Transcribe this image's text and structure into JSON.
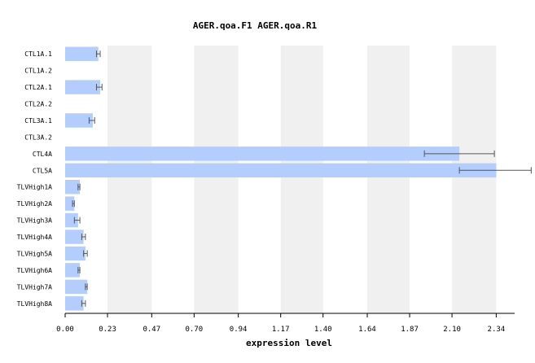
{
  "chart_data": {
    "type": "bar",
    "orientation": "horizontal",
    "title": "AGER.qoa.F1   AGER.qoa.R1",
    "xlabel": "expression level",
    "ylabel": "",
    "xlim": [
      0,
      2.44
    ],
    "x_ticks": [
      "0.00",
      "0.23",
      "0.47",
      "0.70",
      "0.94",
      "1.17",
      "1.40",
      "1.64",
      "1.87",
      "2.10",
      "2.34"
    ],
    "categories": [
      "CTL1A.1",
      "CTL1A.2",
      "CTL2A.1",
      "CTL2A.2",
      "CTL3A.1",
      "CTL3A.2",
      "CTL4A",
      "CTL5A",
      "TLVHigh1A",
      "TLVHigh2A",
      "TLVHigh3A",
      "TLVHigh4A",
      "TLVHigh5A",
      "TLVHigh6A",
      "TLVHigh7A",
      "TLVHigh8A"
    ],
    "values": [
      0.18,
      null,
      0.19,
      null,
      0.15,
      null,
      2.14,
      2.34,
      0.08,
      0.05,
      0.07,
      0.1,
      0.11,
      0.08,
      0.12,
      0.1
    ],
    "error_low": [
      0.17,
      null,
      0.17,
      null,
      0.13,
      null,
      1.95,
      2.14,
      0.07,
      0.04,
      0.05,
      0.09,
      0.1,
      0.07,
      0.11,
      0.09
    ],
    "error_high": [
      0.19,
      null,
      0.2,
      null,
      0.16,
      null,
      2.33,
      2.53,
      0.08,
      0.05,
      0.08,
      0.11,
      0.12,
      0.08,
      0.12,
      0.11
    ],
    "grid": "alternating vertical bands",
    "colors": {
      "bar": "#b3cdfc",
      "band": "#f0f0f0",
      "error": "#555555",
      "axis": "#000000"
    }
  }
}
